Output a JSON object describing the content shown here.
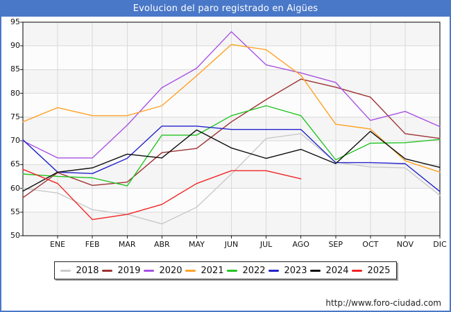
{
  "window": {
    "title": "Evolucion del paro registrado en Aigües",
    "footer_url": "http://www.foro-ciudad.com",
    "frame_color": "#4a78c8"
  },
  "chart_data": {
    "type": "line",
    "title": "Evolucion del paro registrado en Aigües",
    "x_categories": [
      "ENE",
      "FEB",
      "MAR",
      "ABR",
      "MAY",
      "JUN",
      "JUL",
      "AGO",
      "SEP",
      "OCT",
      "NOV",
      "DIC"
    ],
    "x_note": "each series has a leading unlabeled point at the left axis (previous December); 2025 ends at AGO",
    "y_axis": {
      "min": 50,
      "max": 95,
      "step": 5,
      "tick_labels": [
        "95",
        "90",
        "85",
        "80",
        "75",
        "70",
        "65",
        "60",
        "55",
        "50"
      ]
    },
    "grid": true,
    "legend_position": "bottom",
    "band_colors": [
      "#f5f5f5",
      "#fcfcfc"
    ],
    "gridline_color": "#d9d9d9",
    "series": [
      {
        "name": "2018",
        "color": "#c9c9c9",
        "values": [
          60,
          59,
          55.5,
          54.5,
          52.5,
          56,
          63,
          70.5,
          71.5,
          65.5,
          64.5,
          64.3,
          58.5
        ]
      },
      {
        "name": "2019",
        "color": "#9e3131",
        "values": [
          58,
          63.3,
          60.6,
          61.3,
          67.5,
          68.4,
          74,
          78.7,
          83,
          81.3,
          79.2,
          71.5,
          70.5
        ]
      },
      {
        "name": "2020",
        "color": "#a951e3",
        "values": [
          70,
          66.4,
          66.4,
          73.3,
          81.2,
          85.3,
          93,
          86,
          84.3,
          82.3,
          74.3,
          76.2,
          73
        ]
      },
      {
        "name": "2021",
        "color": "#ffa226",
        "values": [
          74,
          77,
          75.3,
          75.3,
          77.4,
          83.7,
          90.3,
          89.2,
          83.8,
          73.5,
          72.5,
          65.8,
          63.4
        ]
      },
      {
        "name": "2022",
        "color": "#22c422",
        "values": [
          63,
          62.5,
          62.2,
          60.5,
          71.2,
          71.2,
          75.3,
          77.4,
          75.3,
          66,
          69.5,
          69.6,
          70.3
        ]
      },
      {
        "name": "2023",
        "color": "#2222cc",
        "values": [
          70.2,
          63.4,
          63.1,
          66.3,
          73.1,
          73.1,
          72.4,
          72.4,
          72.4,
          65.4,
          65.4,
          65.2,
          59.3
        ]
      },
      {
        "name": "2024",
        "color": "#0d0d0d",
        "values": [
          59.4,
          63.4,
          64.3,
          67.2,
          66.4,
          72.3,
          68.5,
          66.3,
          68.2,
          65.2,
          72,
          66.2,
          64.4
        ]
      },
      {
        "name": "2025",
        "color": "#f22222",
        "values": [
          64,
          61,
          53.4,
          54.5,
          56.6,
          61,
          63.7,
          63.7,
          62
        ]
      }
    ]
  }
}
